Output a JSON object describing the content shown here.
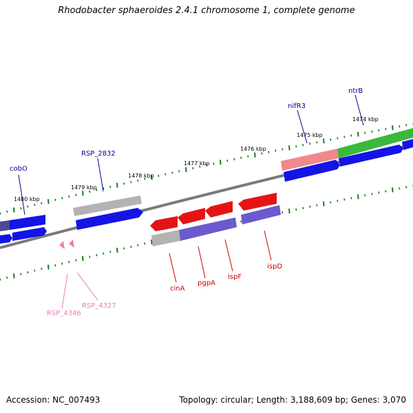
{
  "title": "Rhodobacter sphaeroides 2.4.1 chromosome 1, complete genome",
  "footer": {
    "accession": "Accession: NC_007493",
    "summary": "Topology: circular; Length: 3,188,609 bp; Genes: 3,070"
  },
  "colors": {
    "backbone": "#808080",
    "tick": "#1a7a1a",
    "blue_gene": "#1010e0",
    "red_gene": "#e41010",
    "gray_gene": "#b0b0b0",
    "purple_gene": "#6a5acd",
    "pink_gene": "#f08080",
    "green_gene": "#3ab03a",
    "blue_label": "#00008b",
    "red_label": "#cc0000",
    "pink_label": "#e87ab0"
  },
  "ticks": [
    {
      "label": "1480 kbp"
    },
    {
      "label": "1479 kbp"
    },
    {
      "label": "1478 kbp"
    },
    {
      "label": "1477 kbp"
    },
    {
      "label": "1476 kbp"
    },
    {
      "label": "1475 kbp"
    },
    {
      "label": "1474 kbp"
    }
  ],
  "gene_labels": [
    {
      "name": "cobO",
      "color": "blue"
    },
    {
      "name": "RSP_2832",
      "color": "blue"
    },
    {
      "name": "nifR3",
      "color": "blue"
    },
    {
      "name": "ntrB",
      "color": "blue"
    },
    {
      "name": "cinA",
      "color": "red"
    },
    {
      "name": "pgpA",
      "color": "red"
    },
    {
      "name": "ispF",
      "color": "red"
    },
    {
      "name": "ispD",
      "color": "red"
    },
    {
      "name": "RSP_4346",
      "color": "pink"
    },
    {
      "name": "RSP_4327",
      "color": "pink"
    }
  ]
}
